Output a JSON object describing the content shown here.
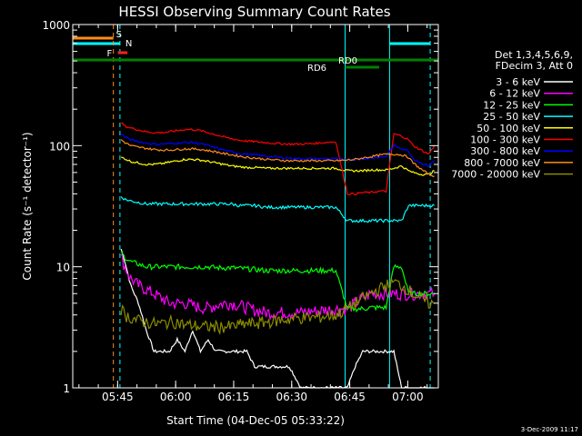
{
  "title": "HESSI Observing Summary Count Rates",
  "footer_date": "3-Dec-2009 11:17",
  "colors": {
    "background": "#000000",
    "foreground": "#ffffff",
    "saa_line": "#ff8c1a",
    "night_line": "#00ffff",
    "flare_mark": "#ff2020",
    "decim_line": "#008000"
  },
  "chart_data": {
    "type": "line",
    "title": "HESSI Observing Summary Count Rates",
    "xlabel": "Start Time (04-Dec-05 05:33:22)",
    "ylabel": "Count Rate (s⁻¹ detector⁻¹)",
    "yscale": "log",
    "ylim": [
      1,
      1000
    ],
    "xlim_minutes": [
      0,
      94.5
    ],
    "x_units": "minutes after 05:33:22",
    "x_ticks": [
      {
        "label": "05:45",
        "t": 11.6
      },
      {
        "label": "06:00",
        "t": 26.6
      },
      {
        "label": "06:15",
        "t": 41.6
      },
      {
        "label": "06:30",
        "t": 56.6
      },
      {
        "label": "06:45",
        "t": 71.6
      },
      {
        "label": "07:00",
        "t": 86.6
      }
    ],
    "y_ticks": [
      {
        "label": "1",
        "v": 1
      },
      {
        "label": "10",
        "v": 10
      },
      {
        "label": "100",
        "v": 100
      },
      {
        "label": "1000",
        "v": 1000
      }
    ],
    "legend_header": [
      "Det 1,3,4,5,6,9,",
      "FDecim 3, Att 0"
    ],
    "legend_position": "right",
    "series": [
      {
        "name": "3 - 6 keV",
        "color": "#ffffff",
        "x": [
          12.5,
          13.5,
          15,
          17,
          19,
          21,
          23,
          25,
          27,
          29,
          31,
          33,
          35,
          37,
          39,
          41,
          43,
          45,
          47,
          50,
          53,
          56,
          59,
          62,
          65,
          68,
          71,
          73,
          75,
          77,
          79,
          81,
          83,
          85,
          86.8,
          88,
          90,
          92,
          93.5
        ],
        "y": [
          14,
          11,
          7,
          5,
          3,
          2,
          2,
          2,
          2.5,
          2,
          3,
          2,
          2.5,
          2,
          2,
          2,
          2,
          2,
          1.5,
          1.5,
          1.5,
          1.5,
          1,
          1,
          1,
          1,
          1,
          1.5,
          2,
          2,
          2,
          2,
          2,
          1,
          1,
          1,
          1,
          1,
          1
        ]
      },
      {
        "name": "6 - 12 keV",
        "color": "#ff00ff",
        "x": [
          12.5,
          13.5,
          15,
          17,
          19,
          21,
          23,
          25,
          27,
          29,
          31,
          33,
          35,
          37,
          39,
          41,
          43,
          45,
          47,
          50,
          53,
          56,
          59,
          62,
          65,
          68,
          71,
          73,
          75,
          77,
          79,
          81,
          83,
          85,
          86.8,
          88,
          90,
          92,
          93.5
        ],
        "y": [
          12,
          10,
          8,
          7,
          6.5,
          6,
          5.5,
          5,
          5,
          5,
          4.8,
          4.6,
          4.6,
          4.8,
          5,
          5,
          4.8,
          4.6,
          4.4,
          4.2,
          4.2,
          4.2,
          4.2,
          4.3,
          4.4,
          4.5,
          4.5,
          5,
          5.5,
          6,
          6,
          6,
          6,
          6,
          6,
          6,
          6,
          6,
          6
        ]
      },
      {
        "name": "12 - 25 keV",
        "color": "#00ff00",
        "x": [
          12.5,
          13.5,
          15,
          17,
          19,
          21,
          23,
          25,
          27,
          29,
          31,
          33,
          35,
          37,
          39,
          41,
          43,
          45,
          47,
          50,
          53,
          56,
          59,
          62,
          65,
          68,
          71,
          73,
          75,
          77,
          79,
          81,
          83,
          85,
          86.8,
          88,
          90,
          92,
          93.5
        ],
        "y": [
          13,
          12,
          11,
          10.5,
          10,
          10,
          10,
          10,
          10,
          10,
          10,
          10,
          10,
          9.8,
          9.8,
          9.8,
          9.7,
          9.6,
          9.5,
          9.3,
          9.3,
          9.3,
          9.3,
          9.3,
          9.3,
          9.3,
          4.5,
          4.5,
          4.5,
          4.6,
          4.6,
          4.6,
          10,
          10,
          6,
          6,
          6,
          6,
          6
        ]
      },
      {
        "name": "25 - 50 keV",
        "color": "#00ffff",
        "x": [
          12.5,
          13.5,
          15,
          17,
          19,
          21,
          23,
          25,
          27,
          29,
          31,
          33,
          35,
          37,
          39,
          41,
          43,
          45,
          47,
          50,
          53,
          56,
          59,
          62,
          65,
          68,
          71,
          73,
          75,
          77,
          79,
          81,
          83,
          85,
          86.8,
          88,
          90,
          92,
          93.5
        ],
        "y": [
          38,
          36,
          35,
          34,
          33,
          33,
          33,
          33,
          33,
          33,
          33,
          33,
          33,
          33,
          33,
          33,
          32,
          32,
          32,
          31,
          31,
          31,
          31,
          31,
          31,
          31,
          24,
          24,
          24,
          24,
          24,
          24,
          24,
          24,
          32,
          32,
          32,
          32,
          32
        ]
      },
      {
        "name": "50 - 100 keV",
        "color": "#ffff00",
        "x": [
          12.5,
          13.5,
          15,
          17,
          19,
          21,
          23,
          25,
          27,
          29,
          31,
          33,
          35,
          37,
          39,
          41,
          43,
          45,
          47,
          50,
          53,
          56,
          59,
          62,
          65,
          68,
          71,
          73,
          75,
          77,
          79,
          81,
          83,
          85,
          86.8,
          88,
          90,
          92,
          93.5
        ],
        "y": [
          80,
          78,
          74,
          72,
          70,
          70,
          71,
          73,
          75,
          77,
          77,
          76,
          74,
          72,
          70,
          68,
          67,
          66,
          66,
          65,
          65,
          65,
          65,
          65,
          65,
          65,
          62,
          62,
          62,
          63,
          63,
          63,
          65,
          68,
          62,
          60,
          58,
          58,
          62
        ]
      },
      {
        "name": "100 - 300 keV",
        "color": "#ff0000",
        "x": [
          12.5,
          13.5,
          15,
          17,
          19,
          21,
          23,
          25,
          27,
          29,
          31,
          33,
          35,
          37,
          39,
          41,
          43,
          45,
          47,
          50,
          53,
          56,
          59,
          62,
          65,
          68,
          71,
          73,
          75,
          77,
          79,
          81,
          83,
          85,
          86.8,
          88,
          90,
          92,
          93.5
        ],
        "y": [
          155,
          145,
          140,
          135,
          130,
          128,
          128,
          130,
          133,
          136,
          136,
          133,
          128,
          123,
          118,
          114,
          111,
          109,
          108,
          106,
          104,
          103,
          103,
          104,
          106,
          108,
          40,
          40,
          41,
          41,
          42,
          42,
          125,
          120,
          112,
          100,
          92,
          85,
          100
        ]
      },
      {
        "name": "300 - 800 keV",
        "color": "#0000ff",
        "x": [
          12.5,
          13.5,
          15,
          17,
          19,
          21,
          23,
          25,
          27,
          29,
          31,
          33,
          35,
          37,
          39,
          41,
          43,
          45,
          47,
          50,
          53,
          56,
          59,
          62,
          65,
          68,
          71,
          73,
          75,
          77,
          79,
          81,
          83,
          85,
          86.8,
          88,
          90,
          92,
          93.5
        ],
        "y": [
          125,
          118,
          112,
          108,
          105,
          103,
          103,
          104,
          105,
          106,
          106,
          104,
          100,
          96,
          92,
          89,
          86,
          85,
          84,
          82,
          80,
          79,
          78,
          78,
          78,
          78,
          77,
          77,
          78,
          79,
          80,
          81,
          100,
          95,
          90,
          78,
          72,
          68,
          75
        ]
      },
      {
        "name": "800 - 7000 keV",
        "color": "#ff8c1a",
        "x": [
          12.5,
          13.5,
          15,
          17,
          19,
          21,
          23,
          25,
          27,
          29,
          31,
          33,
          35,
          37,
          39,
          41,
          43,
          45,
          47,
          50,
          53,
          56,
          59,
          62,
          65,
          68,
          71,
          73,
          75,
          77,
          79,
          81,
          83,
          85,
          86.8,
          88,
          90,
          92,
          93.5
        ],
        "y": [
          112,
          106,
          100,
          97,
          95,
          93,
          92,
          92,
          93,
          94,
          94,
          93,
          91,
          89,
          86,
          84,
          82,
          80,
          79,
          77,
          76,
          75,
          75,
          75,
          75,
          75,
          76,
          77,
          79,
          81,
          83,
          85,
          85,
          84,
          80,
          72,
          64,
          58,
          56
        ]
      },
      {
        "name": "7000 - 20000 keV",
        "color": "#8b8b00",
        "x": [
          12.5,
          13.5,
          15,
          17,
          19,
          21,
          23,
          25,
          27,
          29,
          31,
          33,
          35,
          37,
          39,
          41,
          43,
          45,
          47,
          50,
          53,
          56,
          59,
          62,
          65,
          68,
          71,
          73,
          75,
          77,
          79,
          81,
          83,
          85,
          86.8,
          88,
          90,
          92,
          93.5
        ],
        "y": [
          4.5,
          4,
          3.8,
          3.6,
          3.5,
          3.4,
          3.4,
          3.5,
          3.5,
          3.3,
          3.3,
          3.2,
          3.2,
          3.2,
          3.2,
          3.2,
          3.3,
          3.4,
          3.4,
          3.5,
          3.6,
          3.7,
          3.8,
          3.8,
          3.9,
          4,
          4.5,
          5,
          5.5,
          6,
          6.5,
          7,
          7.5,
          7,
          6.5,
          6,
          5.5,
          5,
          5
        ]
      }
    ],
    "markers": [
      {
        "label": "S",
        "color": "#ff8c1a"
      },
      {
        "label": "N",
        "color": "#00ffff"
      },
      {
        "label": "F",
        "color": "#ff2020"
      },
      {
        "label": "RD0",
        "color": "#008000"
      },
      {
        "label": "RD6",
        "color": "#008000"
      }
    ],
    "saa_interval": [
      0,
      10.5
    ],
    "night_intervals": [
      [
        0,
        12.2
      ],
      [
        81.9,
        92.4
      ]
    ],
    "night_boundaries": [
      0,
      12.2,
      70.4,
      81.9,
      92.4
    ],
    "flare_interval": [
      10.7,
      13.2
    ],
    "decimation_full": [
      0,
      94.5
    ],
    "decimation_high": [
      70.4,
      79.2
    ]
  }
}
